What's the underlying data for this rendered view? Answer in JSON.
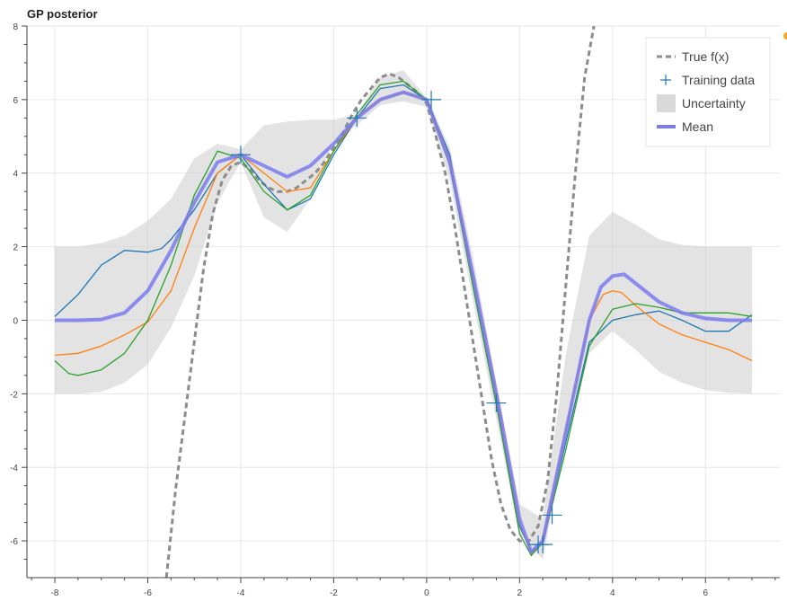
{
  "chart_data": {
    "type": "line",
    "title": "GP posterior",
    "xlabel": "",
    "ylabel": "",
    "xlim": [
      -8.6,
      7.6
    ],
    "ylim": [
      -7,
      8
    ],
    "grid": true,
    "legend_position": "top-right",
    "x_ticks": [
      -8,
      -6,
      -4,
      -2,
      0,
      2,
      4,
      6
    ],
    "x_tick_labels": [
      "-8",
      "-6",
      "-4",
      "-2",
      "0",
      "2",
      "4",
      "6"
    ],
    "y_ticks": [
      -6,
      -4,
      -2,
      0,
      2,
      4,
      6,
      8
    ],
    "y_tick_labels": [
      "-6",
      "-4",
      "-2",
      "0",
      "2",
      "4",
      "6",
      "8"
    ],
    "legend": [
      {
        "key": "true",
        "label": "True f(x)"
      },
      {
        "key": "train",
        "label": "Training data"
      },
      {
        "key": "unc",
        "label": "Uncertainty"
      },
      {
        "key": "mean",
        "label": "Mean"
      }
    ],
    "colors": {
      "true": "#8c8c8c",
      "train": "#1f77b4",
      "uncertainty": "#cccccc",
      "mean": "#7b7bf0",
      "sample_blue": "#1f77b4",
      "sample_orange": "#ff7f0e",
      "sample_green": "#2ca02c",
      "grid": "#e6e6e6",
      "axis": "#444444"
    },
    "true_f": {
      "x": [
        -5.6,
        -5.4,
        -5.2,
        -5.0,
        -4.8,
        -4.6,
        -4.4,
        -4.2,
        -4.0,
        -3.8,
        -3.6,
        -3.4,
        -3.2,
        -3.0,
        -2.8,
        -2.6,
        -2.4,
        -2.2,
        -2.0,
        -1.8,
        -1.6,
        -1.4,
        -1.2,
        -1.0,
        -0.8,
        -0.6,
        -0.4,
        -0.2,
        0.0,
        0.2,
        0.4,
        0.6,
        0.8,
        1.0,
        1.2,
        1.4,
        1.6,
        1.8,
        2.0,
        2.2,
        2.4,
        2.6,
        2.8,
        3.0,
        3.2,
        3.4,
        3.6
      ],
      "y": [
        -7.0,
        -4.6,
        -2.6,
        -0.6,
        1.4,
        2.9,
        3.8,
        4.2,
        4.3,
        4.1,
        3.8,
        3.6,
        3.5,
        3.5,
        3.6,
        3.8,
        4.0,
        4.3,
        4.7,
        5.1,
        5.6,
        6.0,
        6.3,
        6.6,
        6.7,
        6.6,
        6.4,
        6.2,
        5.9,
        5.0,
        4.0,
        2.6,
        1.0,
        -0.6,
        -2.2,
        -3.8,
        -5.0,
        -5.7,
        -6.0,
        -6.0,
        -5.6,
        -4.4,
        -2.0,
        1.0,
        4.0,
        6.6,
        8.0
      ]
    },
    "training_data": {
      "x": [
        -4.0,
        -1.5,
        0.1,
        1.5,
        2.4,
        2.5,
        2.7
      ],
      "y": [
        4.5,
        5.5,
        6.0,
        -2.25,
        -6.1,
        -6.1,
        -5.3
      ]
    },
    "uncertainty": {
      "x": [
        -8.0,
        -7.5,
        -7.0,
        -6.5,
        -6.0,
        -5.5,
        -5.0,
        -4.5,
        -4.0,
        -3.5,
        -3.0,
        -2.5,
        -2.0,
        -1.5,
        -1.0,
        -0.5,
        0.0,
        0.5,
        1.0,
        1.5,
        2.0,
        2.5,
        3.0,
        3.5,
        4.0,
        4.5,
        5.0,
        5.5,
        6.0,
        6.5,
        7.0
      ],
      "lower": [
        -2.0,
        -2.0,
        -1.95,
        -1.7,
        -1.2,
        -0.2,
        1.2,
        3.2,
        4.3,
        2.8,
        2.4,
        3.3,
        4.9,
        5.3,
        5.85,
        5.95,
        5.8,
        3.8,
        0.5,
        -2.7,
        -5.8,
        -6.5,
        -3.2,
        -0.9,
        -0.3,
        -0.8,
        -1.4,
        -1.7,
        -1.9,
        -1.97,
        -2.0
      ],
      "upper": [
        2.0,
        2.0,
        2.1,
        2.3,
        2.7,
        3.3,
        4.4,
        4.8,
        4.65,
        5.3,
        5.4,
        5.45,
        5.45,
        5.6,
        6.6,
        6.8,
        6.05,
        4.7,
        1.7,
        -1.7,
        -5.0,
        -5.4,
        -0.9,
        2.3,
        2.95,
        2.6,
        2.2,
        2.05,
        2.0,
        2.0,
        2.0
      ]
    },
    "mean": {
      "x": [
        -8.0,
        -7.5,
        -7.0,
        -6.5,
        -6.0,
        -5.5,
        -5.0,
        -4.5,
        -4.0,
        -3.5,
        -3.0,
        -2.5,
        -2.0,
        -1.5,
        -1.0,
        -0.5,
        0.0,
        0.5,
        1.0,
        1.5,
        2.0,
        2.25,
        2.5,
        3.0,
        3.5,
        3.75,
        4.0,
        4.25,
        4.5,
        5.0,
        5.5,
        6.0,
        6.5,
        7.0
      ],
      "y": [
        0.0,
        0.0,
        0.02,
        0.2,
        0.8,
        1.9,
        3.2,
        4.3,
        4.5,
        4.2,
        3.9,
        4.2,
        4.8,
        5.5,
        6.0,
        6.2,
        6.0,
        4.3,
        1.2,
        -2.0,
        -5.4,
        -6.3,
        -6.0,
        -3.0,
        0.0,
        0.9,
        1.2,
        1.25,
        1.0,
        0.5,
        0.2,
        0.05,
        0.0,
        0.0
      ]
    },
    "samples": [
      {
        "color_key": "sample_blue",
        "x": [
          -8.0,
          -7.5,
          -7.0,
          -6.5,
          -6.0,
          -5.7,
          -5.5,
          -5.0,
          -4.5,
          -4.0,
          -3.5,
          -3.0,
          -2.5,
          -2.0,
          -1.5,
          -1.0,
          -0.5,
          0.0,
          0.5,
          1.0,
          1.5,
          2.0,
          2.25,
          2.5,
          3.0,
          3.5,
          4.0,
          4.5,
          5.0,
          5.5,
          6.0,
          6.5,
          7.0
        ],
        "y": [
          0.1,
          0.7,
          1.5,
          1.9,
          1.85,
          1.95,
          2.2,
          3.0,
          4.0,
          4.5,
          3.7,
          3.0,
          3.3,
          4.5,
          5.5,
          6.3,
          6.4,
          6.0,
          4.5,
          1.0,
          -2.2,
          -5.6,
          -6.3,
          -6.0,
          -3.3,
          -0.6,
          0.0,
          0.15,
          0.25,
          0.0,
          -0.3,
          -0.3,
          0.15
        ]
      },
      {
        "color_key": "sample_orange",
        "x": [
          -8.0,
          -7.5,
          -7.0,
          -6.5,
          -6.0,
          -5.5,
          -5.0,
          -4.5,
          -4.0,
          -3.5,
          -3.0,
          -2.5,
          -2.0,
          -1.5,
          -1.0,
          -0.5,
          0.0,
          0.5,
          1.0,
          1.5,
          2.0,
          2.25,
          2.5,
          3.0,
          3.5,
          3.8,
          4.0,
          4.2,
          4.5,
          5.0,
          5.5,
          6.0,
          6.5,
          7.0
        ],
        "y": [
          -0.95,
          -0.9,
          -0.7,
          -0.4,
          -0.05,
          0.8,
          2.5,
          4.0,
          4.5,
          4.0,
          3.5,
          3.6,
          4.6,
          5.5,
          6.0,
          6.2,
          6.0,
          4.4,
          1.2,
          -2.0,
          -5.5,
          -6.35,
          -6.0,
          -3.0,
          0.0,
          0.7,
          0.8,
          0.75,
          0.4,
          -0.1,
          -0.4,
          -0.6,
          -0.8,
          -1.1
        ]
      },
      {
        "color_key": "sample_green",
        "x": [
          -8.0,
          -7.7,
          -7.5,
          -7.0,
          -6.5,
          -6.0,
          -5.5,
          -5.0,
          -4.5,
          -4.0,
          -3.5,
          -3.0,
          -2.5,
          -2.0,
          -1.5,
          -1.0,
          -0.5,
          0.0,
          0.5,
          1.0,
          1.5,
          2.0,
          2.25,
          2.5,
          3.0,
          3.5,
          4.0,
          4.5,
          5.0,
          5.5,
          6.0,
          6.5,
          7.0
        ],
        "y": [
          -1.1,
          -1.45,
          -1.5,
          -1.35,
          -0.9,
          0.0,
          1.5,
          3.4,
          4.6,
          4.4,
          3.5,
          3.0,
          3.4,
          4.6,
          5.6,
          6.4,
          6.5,
          6.0,
          4.2,
          0.9,
          -2.3,
          -5.8,
          -6.4,
          -6.05,
          -3.5,
          -0.7,
          0.3,
          0.45,
          0.35,
          0.2,
          0.2,
          0.2,
          0.1
        ]
      }
    ]
  }
}
